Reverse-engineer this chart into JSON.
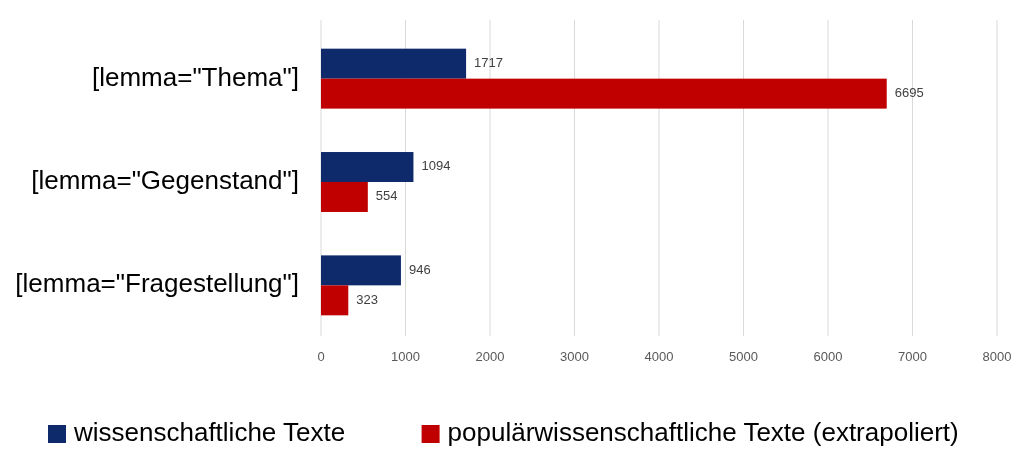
{
  "chart_data": {
    "type": "bar",
    "orientation": "horizontal",
    "categories": [
      "[lemma=\"Thema\"]",
      "[lemma=\"Gegenstand\"]",
      "[lemma=\"Fragestellung\"]"
    ],
    "series": [
      {
        "name": "wissenschaftliche Texte",
        "color": "#0e2a6b",
        "values": [
          1717,
          1094,
          946
        ]
      },
      {
        "name": "populärwissenschaftliche Texte (extrapoliert)",
        "color": "#c00000",
        "values": [
          6695,
          554,
          323
        ]
      }
    ],
    "xlim": [
      0,
      8000
    ],
    "xticks": [
      0,
      1000,
      2000,
      3000,
      4000,
      5000,
      6000,
      7000,
      8000
    ],
    "grid": "x",
    "legend": "bottom",
    "data_labels": true
  }
}
